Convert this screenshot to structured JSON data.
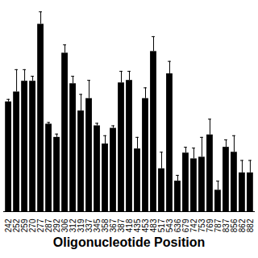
{
  "chart_data": {
    "type": "bar",
    "x_label": "Oligonucleotide Position",
    "categories": [
      "242",
      "252",
      "259",
      "270",
      "277",
      "287",
      "292",
      "306",
      "312",
      "319",
      "337",
      "345",
      "358",
      "367",
      "387",
      "418",
      "435",
      "453",
      "483",
      "517",
      "543",
      "636",
      "679",
      "742",
      "753",
      "769",
      "787",
      "837",
      "856",
      "862",
      "882"
    ],
    "values": [
      133,
      145,
      158,
      158,
      227,
      106,
      90,
      192,
      155,
      122,
      137,
      104,
      82,
      101,
      156,
      159,
      76,
      137,
      194,
      52,
      167,
      37,
      71,
      64,
      66,
      93,
      26,
      78,
      72,
      47,
      47
    ],
    "errors": [
      3,
      27,
      14,
      6,
      15,
      2,
      4,
      10,
      9,
      20,
      22,
      3,
      10,
      3,
      14,
      11,
      14,
      13,
      18,
      20,
      15,
      7,
      7,
      13,
      24,
      19,
      11,
      9,
      20,
      15,
      15
    ],
    "color": "#000000",
    "ylim": [
      0,
      250
    ],
    "tick_labels": "x",
    "grid": false
  }
}
